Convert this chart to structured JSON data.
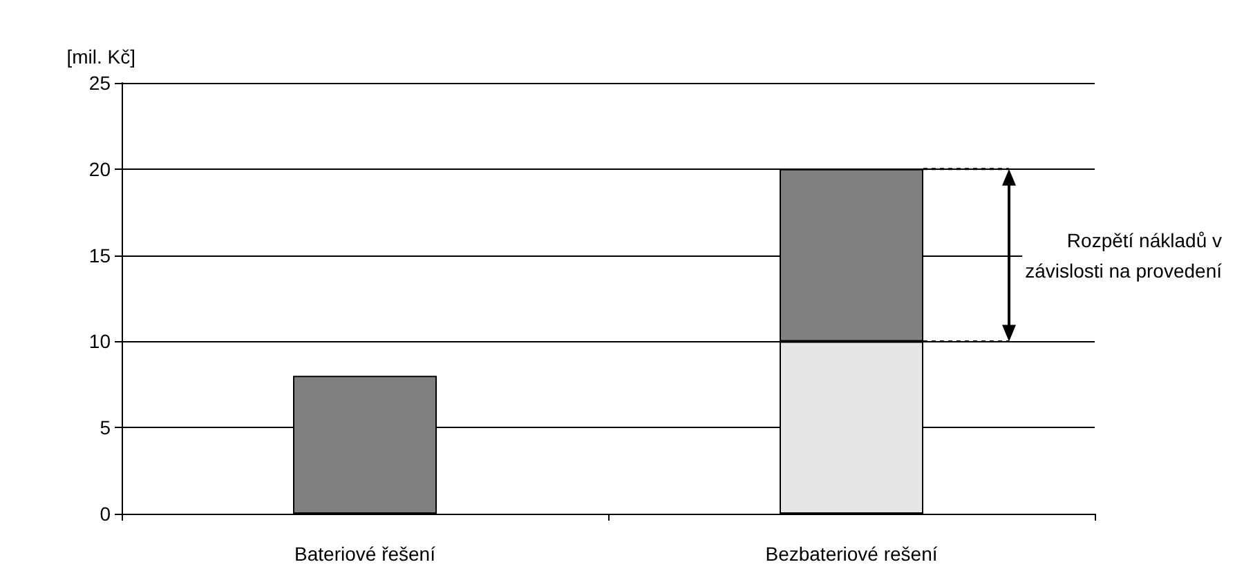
{
  "chart_data": {
    "type": "bar",
    "ylabel": "[mil. Kč]",
    "categories": [
      "Bateriové řešení",
      "Bezbateriové rešení"
    ],
    "stacked": true,
    "series": [
      {
        "color": "#e6e6e6",
        "values": [
          null,
          10
        ]
      },
      {
        "color": "#808080",
        "values": [
          8,
          10
        ]
      }
    ],
    "ylim": [
      0,
      25
    ],
    "yticks": [
      0,
      5,
      10,
      15,
      20,
      25
    ],
    "grid": "y",
    "annotations": [
      "Rozpětí nákladů v\nzávislosti na provedení"
    ]
  }
}
